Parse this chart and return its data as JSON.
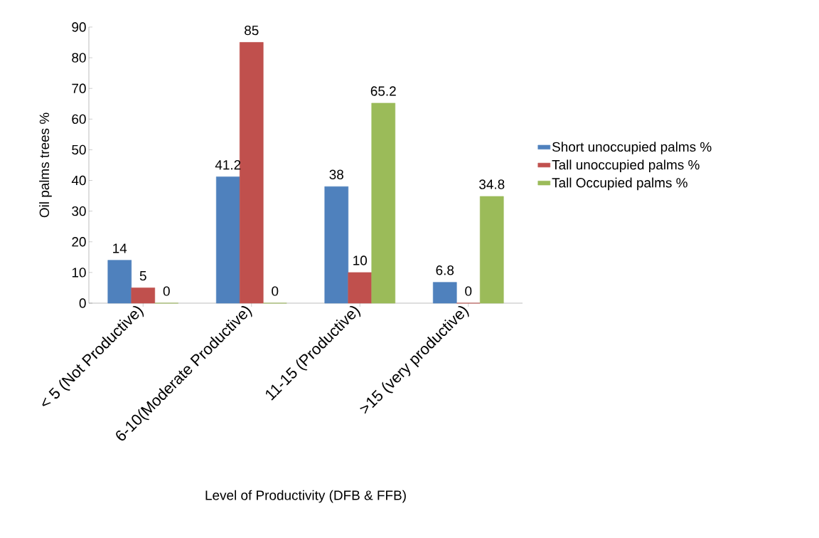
{
  "chart_data": {
    "type": "bar",
    "xlabel": "Level of Productivity (DFB & FFB)",
    "ylabel": "Oil palms trees %",
    "categories": [
      "< 5 (Not Productive)",
      "6-10(Moderate Productive)",
      "11-15 (Productive)",
      ">15 (very productive)"
    ],
    "series": [
      {
        "name": "Short unoccupied palms %",
        "color": "#4f81bd",
        "values": [
          14,
          41.2,
          38,
          6.8
        ]
      },
      {
        "name": "Tall unoccupied palms %",
        "color": "#c0504d",
        "values": [
          5,
          85,
          10,
          0
        ]
      },
      {
        "name": "Tall Occupied palms %",
        "color": "#9bbb59",
        "values": [
          0,
          0,
          65.2,
          34.8
        ]
      }
    ],
    "ylim": [
      0,
      90
    ],
    "yticks": [
      0,
      10,
      20,
      30,
      40,
      50,
      60,
      70,
      80,
      90
    ],
    "grid": false,
    "legend": "right",
    "data_labels": true
  }
}
